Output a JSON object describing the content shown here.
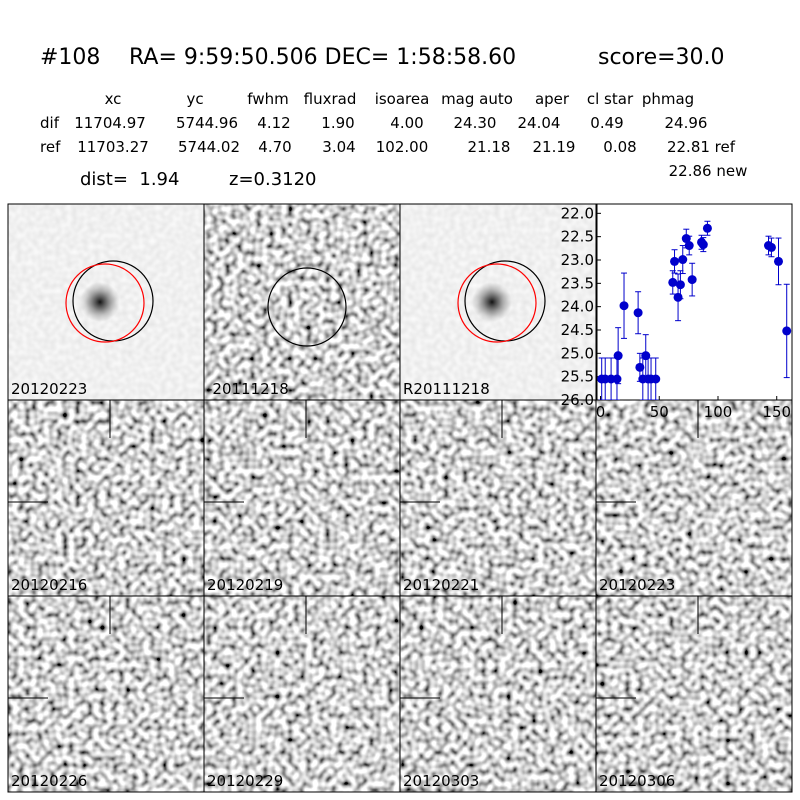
{
  "header": {
    "object_id": "#108",
    "coordinates": "RA= 9:59:50.506 DEC= 1:58:58.60",
    "score": "score=30.0"
  },
  "table": {
    "columns": [
      "xc",
      "yc",
      "fwhm",
      "fluxrad",
      "isoarea",
      "mag auto",
      "aper",
      "cl star",
      "phmag"
    ],
    "rows": [
      {
        "label": "dif",
        "cells": [
          "11704.97",
          "5744.96",
          "4.12",
          "1.90",
          "4.00",
          "24.30",
          "24.04",
          "0.49",
          "24.96"
        ]
      },
      {
        "label": "ref",
        "cells": [
          "11703.27",
          "5744.02",
          "4.70",
          "3.04",
          "102.00",
          "21.18",
          "21.19",
          "0.08",
          "22.81 ref"
        ]
      }
    ],
    "extra": "22.86 new"
  },
  "dist": "dist=  1.94",
  "redshift": "z=0.3120",
  "reference_stamps": [
    "20120223",
    "-20111218",
    "R20111218"
  ],
  "epoch_stamps": [
    {
      "label": "20120216"
    },
    {
      "label": "20120219"
    },
    {
      "label": "20120221"
    },
    {
      "label": "20120223",
      "color": "#ff0000"
    },
    {
      "label": "20120226"
    },
    {
      "label": "20120229"
    },
    {
      "label": "20120303"
    },
    {
      "label": "20120306"
    }
  ],
  "chart_data": {
    "type": "errorbar",
    "color": "#0000cc",
    "x": [
      1,
      4,
      9,
      14,
      15,
      20,
      32,
      33.5,
      36,
      38.5,
      40.5,
      43,
      47,
      61.5,
      63,
      66,
      68,
      70,
      73,
      75.5,
      78,
      86,
      87.5,
      91,
      143,
      145.5,
      151.5,
      158.5
    ],
    "values": [
      25.55,
      25.55,
      25.55,
      25.55,
      25.05,
      23.98,
      24.13,
      25.3,
      25.55,
      25.05,
      25.55,
      25.55,
      25.55,
      23.48,
      23.03,
      23.8,
      23.53,
      22.99,
      22.54,
      22.69,
      23.42,
      22.62,
      22.67,
      22.32,
      22.69,
      22.73,
      23.03,
      24.52
    ],
    "errors": [
      0.45,
      0.45,
      0.45,
      0.45,
      0.6,
      0.7,
      0.45,
      0.3,
      0.45,
      0.45,
      0.45,
      0.45,
      0.45,
      0.25,
      0.25,
      0.5,
      0.3,
      0.3,
      0.2,
      0.2,
      0.35,
      0.15,
      0.15,
      0.15,
      0.2,
      0.2,
      0.5,
      1.0
    ],
    "xlim": [
      -3,
      163
    ],
    "ylim": [
      26,
      21.8
    ],
    "xticks": [
      0,
      50,
      100,
      150
    ],
    "yticks": [
      {
        "value": 22,
        "label": "22.0"
      },
      22.5,
      {
        "value": 23,
        "label": "23.0"
      },
      23.5,
      {
        "value": 24,
        "label": "24.0"
      },
      24.5,
      {
        "value": 25,
        "label": "25.0"
      },
      25.5,
      {
        "value": 26,
        "label": "26.0"
      }
    ]
  }
}
